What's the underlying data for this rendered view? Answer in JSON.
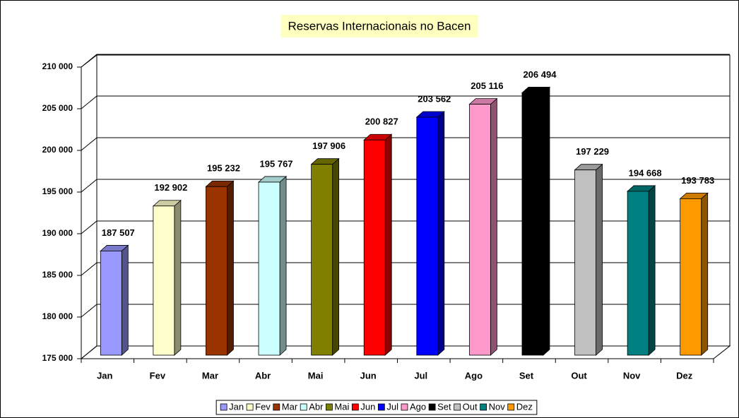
{
  "chart_data": {
    "type": "bar",
    "title": "Reservas Internacionais no Bacen",
    "categories": [
      "Jan",
      "Fev",
      "Mar",
      "Abr",
      "Mai",
      "Jun",
      "Jul",
      "Ago",
      "Set",
      "Out",
      "Nov",
      "Dez"
    ],
    "values": [
      187507,
      192902,
      195232,
      195767,
      197906,
      200827,
      203562,
      205116,
      206494,
      197229,
      194668,
      193783
    ],
    "value_labels": [
      "187 507",
      "192 902",
      "195 232",
      "195 767",
      "197 906",
      "200 827",
      "203 562",
      "205 116",
      "206 494",
      "197 229",
      "194 668",
      "193 783"
    ],
    "colors": [
      "#9999ff",
      "#ffffcc",
      "#993300",
      "#ccffff",
      "#808000",
      "#ff0000",
      "#0000ff",
      "#ff99cc",
      "#000000",
      "#c0c0c0",
      "#008080",
      "#ff9900"
    ],
    "ylim": [
      175000,
      210000
    ],
    "yticks": [
      {
        "value": 175000,
        "label": "175 000"
      },
      {
        "value": 180000,
        "label": "180 000"
      },
      {
        "value": 185000,
        "label": "185 000"
      },
      {
        "value": 190000,
        "label": "190 000"
      },
      {
        "value": 195000,
        "label": "195 000"
      },
      {
        "value": 200000,
        "label": "200 000"
      },
      {
        "value": 205000,
        "label": "205 000"
      },
      {
        "value": 210000,
        "label": "210 000"
      }
    ],
    "grid": true,
    "legend": "bottom"
  }
}
